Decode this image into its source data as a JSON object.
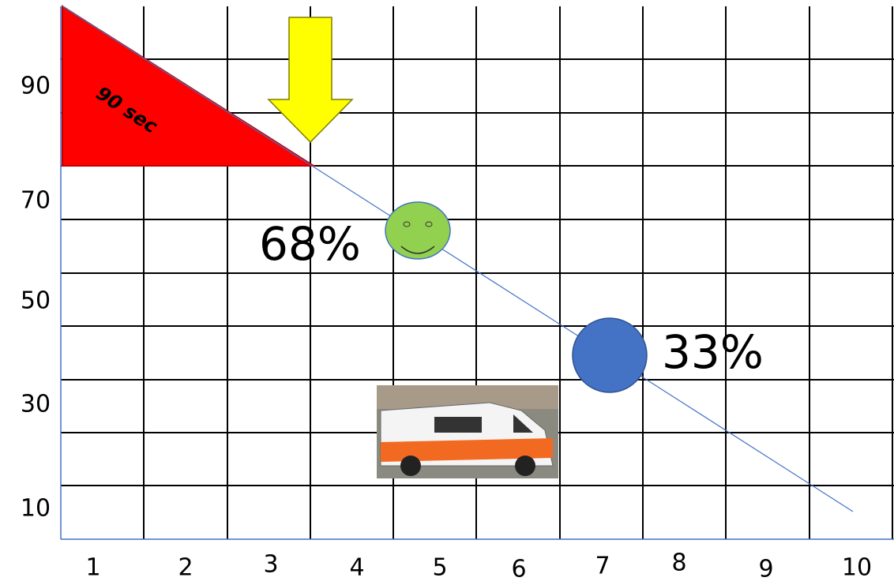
{
  "y_labels": [
    "90",
    "70",
    "50",
    "30",
    "10"
  ],
  "x_labels": [
    "1",
    "2",
    "3",
    "4",
    "5",
    "6",
    "7",
    "8",
    "9",
    "10"
  ],
  "triangle_label": "90 sec",
  "annotations": [
    "68%",
    "33%"
  ]
}
